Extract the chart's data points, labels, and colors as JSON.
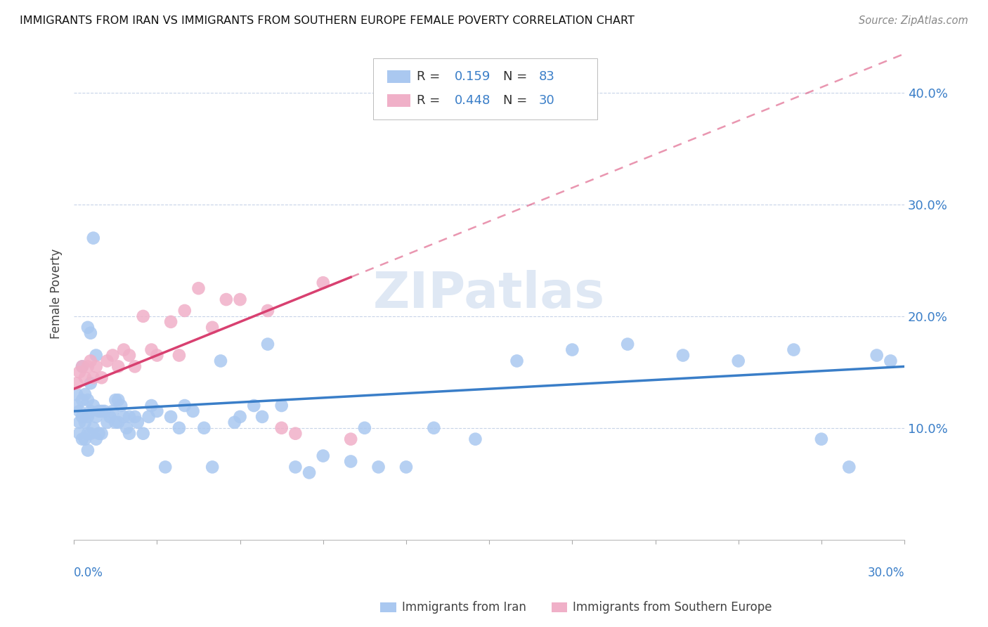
{
  "title": "IMMIGRANTS FROM IRAN VS IMMIGRANTS FROM SOUTHERN EUROPE FEMALE POVERTY CORRELATION CHART",
  "source": "Source: ZipAtlas.com",
  "ylabel": "Female Poverty",
  "xlim": [
    0.0,
    0.3
  ],
  "ylim": [
    0.0,
    0.44
  ],
  "right_yticks": [
    0.1,
    0.2,
    0.3,
    0.4
  ],
  "right_yticklabels": [
    "10.0%",
    "20.0%",
    "30.0%",
    "40.0%"
  ],
  "legend_iran_R": "0.159",
  "legend_iran_N": "83",
  "legend_europe_R": "0.448",
  "legend_europe_N": "30",
  "color_iran": "#aac8f0",
  "color_iran_line": "#3a7ec8",
  "color_europe": "#f0b0c8",
  "color_europe_line": "#d84070",
  "watermark": "ZIPatlas",
  "iran_x": [
    0.001,
    0.001,
    0.002,
    0.002,
    0.002,
    0.003,
    0.003,
    0.003,
    0.004,
    0.004,
    0.004,
    0.005,
    0.005,
    0.005,
    0.005,
    0.006,
    0.006,
    0.006,
    0.007,
    0.007,
    0.008,
    0.008,
    0.009,
    0.009,
    0.01,
    0.01,
    0.011,
    0.012,
    0.013,
    0.014,
    0.015,
    0.015,
    0.016,
    0.016,
    0.017,
    0.018,
    0.019,
    0.02,
    0.02,
    0.022,
    0.023,
    0.025,
    0.027,
    0.028,
    0.03,
    0.033,
    0.035,
    0.038,
    0.04,
    0.043,
    0.047,
    0.05,
    0.053,
    0.058,
    0.06,
    0.065,
    0.068,
    0.07,
    0.075,
    0.08,
    0.085,
    0.09,
    0.1,
    0.105,
    0.11,
    0.12,
    0.13,
    0.145,
    0.16,
    0.18,
    0.2,
    0.22,
    0.24,
    0.26,
    0.27,
    0.28,
    0.29,
    0.295,
    0.005,
    0.006,
    0.007,
    0.008,
    0.003
  ],
  "iran_y": [
    0.13,
    0.12,
    0.115,
    0.105,
    0.095,
    0.125,
    0.11,
    0.09,
    0.13,
    0.105,
    0.09,
    0.125,
    0.11,
    0.095,
    0.08,
    0.14,
    0.115,
    0.095,
    0.12,
    0.1,
    0.11,
    0.09,
    0.115,
    0.095,
    0.115,
    0.095,
    0.115,
    0.105,
    0.11,
    0.115,
    0.125,
    0.105,
    0.125,
    0.105,
    0.12,
    0.11,
    0.1,
    0.11,
    0.095,
    0.11,
    0.105,
    0.095,
    0.11,
    0.12,
    0.115,
    0.065,
    0.11,
    0.1,
    0.12,
    0.115,
    0.1,
    0.065,
    0.16,
    0.105,
    0.11,
    0.12,
    0.11,
    0.175,
    0.12,
    0.065,
    0.06,
    0.075,
    0.07,
    0.1,
    0.065,
    0.065,
    0.1,
    0.09,
    0.16,
    0.17,
    0.175,
    0.165,
    0.16,
    0.17,
    0.09,
    0.065,
    0.165,
    0.16,
    0.19,
    0.185,
    0.27,
    0.165,
    0.155
  ],
  "europe_x": [
    0.001,
    0.002,
    0.003,
    0.004,
    0.005,
    0.006,
    0.007,
    0.008,
    0.01,
    0.012,
    0.014,
    0.016,
    0.018,
    0.02,
    0.022,
    0.025,
    0.028,
    0.03,
    0.035,
    0.038,
    0.04,
    0.045,
    0.05,
    0.055,
    0.06,
    0.07,
    0.075,
    0.08,
    0.09,
    0.1
  ],
  "europe_y": [
    0.14,
    0.15,
    0.155,
    0.145,
    0.155,
    0.16,
    0.145,
    0.155,
    0.145,
    0.16,
    0.165,
    0.155,
    0.17,
    0.165,
    0.155,
    0.2,
    0.17,
    0.165,
    0.195,
    0.165,
    0.205,
    0.225,
    0.19,
    0.215,
    0.215,
    0.205,
    0.1,
    0.095,
    0.23,
    0.09
  ]
}
